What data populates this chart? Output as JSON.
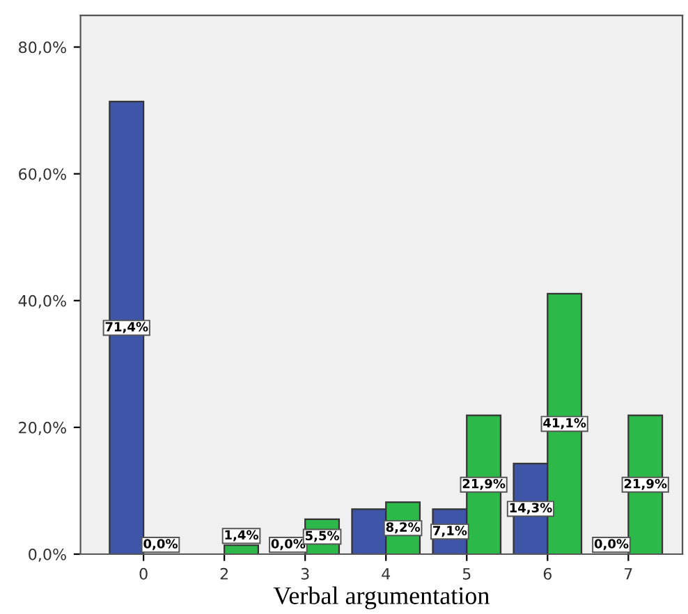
{
  "chart_data": {
    "type": "bar",
    "xlabel": "Verbal argumentation",
    "categories": [
      "0",
      "2",
      "3",
      "4",
      "5",
      "6",
      "7"
    ],
    "series": [
      {
        "color": "#3f56a8",
        "values": [
          71.4,
          null,
          0.0,
          7.1,
          7.1,
          14.3,
          0.0
        ],
        "value_labels": [
          "71,4%",
          null,
          "0,0%",
          null,
          "7,1%",
          "14,3%",
          "0,0%"
        ]
      },
      {
        "color": "#2db84a",
        "values": [
          0.0,
          1.4,
          5.5,
          8.2,
          21.9,
          41.1,
          21.9
        ],
        "value_labels": [
          "0,0%",
          "1,4%",
          "5,5%",
          "8,2%",
          "21,9%",
          "41,1%",
          "21,9%"
        ]
      }
    ],
    "ylim": [
      0,
      85
    ],
    "yticks": [
      {
        "value": 0,
        "label": "0,0%"
      },
      {
        "value": 20,
        "label": "20,0%"
      },
      {
        "value": 40,
        "label": "40,0%"
      },
      {
        "value": 60,
        "label": "60,0%"
      },
      {
        "value": 80,
        "label": "80,0%"
      }
    ],
    "grid": false,
    "legend": false
  }
}
